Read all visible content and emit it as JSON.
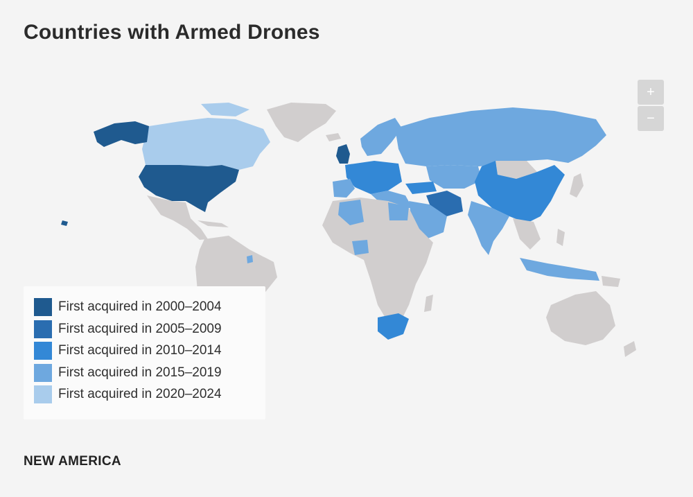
{
  "title": "Countries with Armed Drones",
  "zoom": {
    "in_label": "+",
    "out_label": "−"
  },
  "legend": [
    {
      "label": "First acquired in 2000–2004",
      "color": "#1f5a8f"
    },
    {
      "label": "First acquired in 2005–2009",
      "color": "#2a6db0"
    },
    {
      "label": "First acquired in 2010–2014",
      "color": "#3388d6"
    },
    {
      "label": "First acquired in 2015–2019",
      "color": "#6ea8df"
    },
    {
      "label": "First acquired in 2020–2024",
      "color": "#a9ccec"
    }
  ],
  "footer": "NEW AMERICA",
  "colors": {
    "background": "#f4f4f4",
    "land_no_data": "#d1cece",
    "legend_bg": "#fbfbfb"
  }
}
